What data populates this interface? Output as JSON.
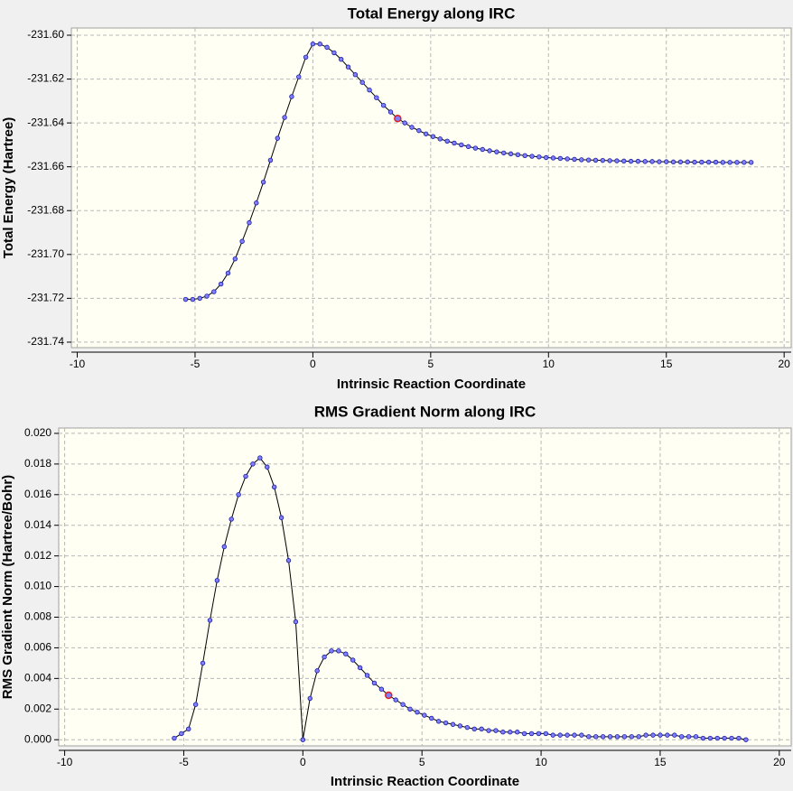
{
  "chart_data": [
    {
      "type": "line",
      "title": "Total Energy along IRC",
      "xlabel": "Intrinsic Reaction Coordinate",
      "ylabel": "Total Energy (Hartree)",
      "xlim": [
        -10.25,
        20.3
      ],
      "xticks": [
        -10,
        -5,
        0,
        5,
        10,
        15,
        20
      ],
      "ylim": [
        -231.7425,
        -231.5967
      ],
      "yticks": [
        {
          "value": -231.6,
          "label": "-231.60"
        },
        -231.62,
        -231.64,
        -231.66,
        -231.68,
        {
          "value": -231.7,
          "label": "-231.70"
        },
        -231.72,
        -231.74
      ],
      "grid": true,
      "line_color": "#000000",
      "marker_color": "#8080ff",
      "highlight_point": 30,
      "highlight_color": "#e02020",
      "x": [
        -5.4,
        -5.1,
        -4.8,
        -4.5,
        -4.2,
        -3.9,
        -3.6,
        -3.3,
        -3.0,
        -2.7,
        -2.4,
        -2.1,
        -1.8,
        -1.5,
        -1.2,
        -0.9,
        -0.6,
        -0.3,
        0.0,
        0.3,
        0.6,
        0.9,
        1.2,
        1.5,
        1.8,
        2.1,
        2.4,
        2.7,
        3.0,
        3.3,
        3.6,
        3.9,
        4.2,
        4.5,
        4.8,
        5.1,
        5.4,
        5.7,
        6.0,
        6.3,
        6.6,
        6.9,
        7.2,
        7.5,
        7.8,
        8.1,
        8.4,
        8.7,
        9.0,
        9.3,
        9.6,
        9.9,
        10.2,
        10.5,
        10.8,
        11.1,
        11.4,
        11.7,
        12.0,
        12.3,
        12.6,
        12.9,
        13.2,
        13.5,
        13.8,
        14.1,
        14.4,
        14.7,
        15.0,
        15.3,
        15.6,
        15.9,
        16.2,
        16.5,
        16.8,
        17.1,
        17.4,
        17.7,
        18.0,
        18.3,
        18.6
      ],
      "values": [
        -231.7205,
        -231.7205,
        -231.72,
        -231.719,
        -231.717,
        -231.7135,
        -231.7085,
        -231.702,
        -231.694,
        -231.6855,
        -231.6765,
        -231.667,
        -231.657,
        -231.647,
        -231.6375,
        -231.628,
        -231.619,
        -231.61,
        -231.604,
        -231.604,
        -231.6055,
        -231.608,
        -231.611,
        -231.6145,
        -231.618,
        -231.6215,
        -231.625,
        -231.6285,
        -231.632,
        -231.635,
        -231.638,
        -231.64,
        -231.642,
        -231.6435,
        -231.645,
        -231.6462,
        -231.6473,
        -231.6483,
        -231.6492,
        -231.65,
        -231.6508,
        -231.6515,
        -231.6521,
        -231.6527,
        -231.6532,
        -231.6537,
        -231.6541,
        -231.6545,
        -231.6549,
        -231.6552,
        -231.6555,
        -231.6558,
        -231.656,
        -231.6562,
        -231.6564,
        -231.6566,
        -231.6568,
        -231.6569,
        -231.657,
        -231.6571,
        -231.6572,
        -231.6573,
        -231.6574,
        -231.6575,
        -231.6575,
        -231.6576,
        -231.6576,
        -231.6577,
        -231.6577,
        -231.6578,
        -231.6578,
        -231.6578,
        -231.6579,
        -231.6579,
        -231.6579,
        -231.6579,
        -231.658,
        -231.658,
        -231.658,
        -231.658,
        -231.658
      ]
    },
    {
      "type": "line",
      "title": "RMS Gradient Norm along IRC",
      "xlabel": "Intrinsic Reaction Coordinate",
      "ylabel": "RMS Gradient Norm (Hartree/Bohr)",
      "xlim": [
        -10.25,
        20.5
      ],
      "xticks": [
        -10,
        -5,
        0,
        5,
        10,
        15,
        20
      ],
      "ylim": [
        -0.0004,
        0.02035
      ],
      "yticks": [
        {
          "value": 0,
          "label": "0.000"
        },
        {
          "value": 0.002,
          "label": "0.002"
        },
        {
          "value": 0.004,
          "label": "0.004"
        },
        {
          "value": 0.006,
          "label": "0.006"
        },
        {
          "value": 0.008,
          "label": "0.008"
        },
        {
          "value": 0.01,
          "label": "0.010"
        },
        {
          "value": 0.012,
          "label": "0.012"
        },
        {
          "value": 0.014,
          "label": "0.014"
        },
        {
          "value": 0.016,
          "label": "0.016"
        },
        {
          "value": 0.018,
          "label": "0.018"
        },
        {
          "value": 0.02,
          "label": "0.020"
        }
      ],
      "grid": true,
      "line_color": "#000000",
      "marker_color": "#8080ff",
      "highlight_point": 30,
      "highlight_color": "#e02020",
      "x": [
        -5.4,
        -5.1,
        -4.8,
        -4.5,
        -4.2,
        -3.9,
        -3.6,
        -3.3,
        -3.0,
        -2.7,
        -2.4,
        -2.1,
        -1.8,
        -1.5,
        -1.2,
        -0.9,
        -0.6,
        -0.3,
        0.0,
        0.3,
        0.6,
        0.9,
        1.2,
        1.5,
        1.8,
        2.1,
        2.4,
        2.7,
        3.0,
        3.3,
        3.6,
        3.9,
        4.2,
        4.5,
        4.8,
        5.1,
        5.4,
        5.7,
        6.0,
        6.3,
        6.6,
        6.9,
        7.2,
        7.5,
        7.8,
        8.1,
        8.4,
        8.7,
        9.0,
        9.3,
        9.6,
        9.9,
        10.2,
        10.5,
        10.8,
        11.1,
        11.4,
        11.7,
        12.0,
        12.3,
        12.6,
        12.9,
        13.2,
        13.5,
        13.8,
        14.1,
        14.4,
        14.7,
        15.0,
        15.3,
        15.6,
        15.9,
        16.2,
        16.5,
        16.8,
        17.1,
        17.4,
        17.7,
        18.0,
        18.3,
        18.6
      ],
      "values": [
        0.0001,
        0.0004,
        0.0007,
        0.0023,
        0.005,
        0.0078,
        0.0104,
        0.0126,
        0.0144,
        0.016,
        0.0172,
        0.018,
        0.0184,
        0.0178,
        0.0165,
        0.0145,
        0.0117,
        0.0077,
        0.0,
        0.0027,
        0.0045,
        0.0054,
        0.0058,
        0.0058,
        0.0056,
        0.0052,
        0.0047,
        0.0042,
        0.0037,
        0.0033,
        0.0029,
        0.0026,
        0.0023,
        0.002,
        0.0018,
        0.0016,
        0.0014,
        0.0012,
        0.0011,
        0.001,
        0.0009,
        0.0008,
        0.0007,
        0.0007,
        0.0006,
        0.0006,
        0.0005,
        0.0005,
        0.0005,
        0.0004,
        0.0004,
        0.0004,
        0.0004,
        0.0003,
        0.0003,
        0.0003,
        0.0003,
        0.0003,
        0.0002,
        0.0002,
        0.0002,
        0.0002,
        0.0002,
        0.0002,
        0.0002,
        0.0002,
        0.0003,
        0.0003,
        0.0003,
        0.0003,
        0.0003,
        0.0002,
        0.0002,
        0.0002,
        0.0001,
        0.0001,
        0.0001,
        0.0001,
        0.0001,
        0.0001,
        0.0
      ]
    }
  ]
}
